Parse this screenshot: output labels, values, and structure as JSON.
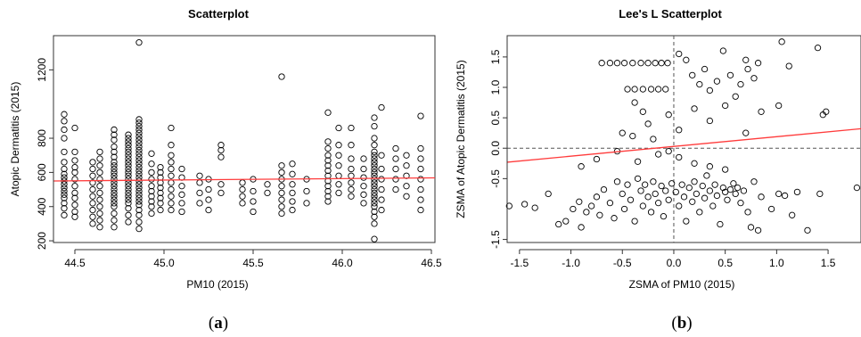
{
  "captions": {
    "a": "a",
    "b": "b"
  },
  "chart_data": [
    {
      "type": "scatter",
      "title": "Scatterplot",
      "xlabel": "PM10 (2015)",
      "ylabel": "Atopic Dermatitis (2015)",
      "xlim": [
        44.38,
        46.52
      ],
      "ylim": [
        190,
        1400
      ],
      "xticks": [
        44.5,
        45.0,
        45.5,
        46.0,
        46.5
      ],
      "xtick_labels": [
        "44.5",
        "45.0",
        "45.5",
        "46.0",
        "46.5"
      ],
      "yticks": [
        200,
        400,
        600,
        800,
        1200
      ],
      "ytick_labels": [
        "200",
        "400",
        "600",
        "800",
        "1200"
      ],
      "regression_line": {
        "color": "#ff3b3b",
        "y_at_xmin": 550,
        "y_at_xmax": 568
      },
      "marker_color": "#000000",
      "columns": [
        {
          "x": 44.44,
          "y": [
            350,
            390,
            420,
            450,
            470,
            490,
            510,
            530,
            550,
            570,
            590,
            620,
            660,
            720,
            800,
            850,
            900,
            940
          ]
        },
        {
          "x": 44.5,
          "y": [
            340,
            370,
            410,
            450,
            480,
            520,
            560,
            600,
            630,
            670,
            720,
            860
          ]
        },
        {
          "x": 44.6,
          "y": [
            300,
            340,
            380,
            420,
            460,
            500,
            540,
            580,
            620,
            660
          ]
        },
        {
          "x": 44.64,
          "y": [
            280,
            320,
            360,
            400,
            440,
            480,
            520,
            560,
            600,
            640,
            680,
            720
          ]
        },
        {
          "x": 44.72,
          "y": [
            280,
            320,
            360,
            400,
            420,
            440,
            460,
            480,
            500,
            520,
            540,
            560,
            580,
            600,
            620,
            640,
            660,
            690,
            720,
            750,
            790,
            820,
            850
          ]
        },
        {
          "x": 44.8,
          "y": [
            310,
            350,
            390,
            420,
            440,
            460,
            480,
            500,
            520,
            540,
            560,
            580,
            600,
            620,
            640,
            660,
            680,
            700,
            720,
            740,
            760,
            780,
            800,
            820
          ]
        },
        {
          "x": 44.86,
          "y": [
            270,
            310,
            350,
            380,
            410,
            430,
            450,
            470,
            490,
            510,
            530,
            550,
            570,
            590,
            610,
            630,
            650,
            670,
            690,
            710,
            730,
            750,
            770,
            790,
            810,
            830,
            850,
            870,
            890,
            910,
            1360
          ]
        },
        {
          "x": 44.93,
          "y": [
            360,
            400,
            430,
            460,
            490,
            520,
            560,
            600,
            650,
            710
          ]
        },
        {
          "x": 44.98,
          "y": [
            380,
            420,
            450,
            480,
            510,
            540,
            570,
            600,
            630
          ]
        },
        {
          "x": 45.04,
          "y": [
            380,
            420,
            460,
            500,
            540,
            580,
            620,
            660,
            700,
            760,
            860
          ]
        },
        {
          "x": 45.1,
          "y": [
            370,
            420,
            470,
            520,
            570,
            620
          ]
        },
        {
          "x": 45.2,
          "y": [
            420,
            480,
            540,
            580
          ]
        },
        {
          "x": 45.25,
          "y": [
            380,
            440,
            500,
            560
          ]
        },
        {
          "x": 45.32,
          "y": [
            480,
            530,
            690,
            730,
            760
          ]
        },
        {
          "x": 45.44,
          "y": [
            420,
            460,
            500,
            540
          ]
        },
        {
          "x": 45.5,
          "y": [
            370,
            430,
            490,
            560
          ]
        },
        {
          "x": 45.58,
          "y": [
            480,
            530
          ]
        },
        {
          "x": 45.66,
          "y": [
            360,
            400,
            440,
            480,
            520,
            560,
            600,
            640,
            1160
          ]
        },
        {
          "x": 45.72,
          "y": [
            380,
            430,
            480,
            530,
            590,
            650
          ]
        },
        {
          "x": 45.8,
          "y": [
            420,
            490,
            560
          ]
        },
        {
          "x": 45.92,
          "y": [
            430,
            460,
            490,
            520,
            550,
            580,
            610,
            640,
            670,
            700,
            740,
            780,
            950
          ]
        },
        {
          "x": 45.98,
          "y": [
            480,
            530,
            580,
            640,
            700,
            760,
            860
          ]
        },
        {
          "x": 46.05,
          "y": [
            460,
            500,
            540,
            580,
            620,
            680,
            760,
            860
          ]
        },
        {
          "x": 46.12,
          "y": [
            420,
            470,
            520,
            570,
            620,
            680
          ]
        },
        {
          "x": 46.18,
          "y": [
            210,
            300,
            340,
            370,
            400,
            420,
            440,
            460,
            480,
            500,
            520,
            540,
            560,
            580,
            600,
            620,
            640,
            660,
            680,
            700,
            720,
            760,
            800,
            870,
            920
          ]
        },
        {
          "x": 46.22,
          "y": [
            380,
            440,
            500,
            560,
            620,
            700,
            980
          ]
        },
        {
          "x": 46.3,
          "y": [
            500,
            560,
            620,
            680,
            740
          ]
        },
        {
          "x": 46.36,
          "y": [
            460,
            520,
            580,
            640,
            700
          ]
        },
        {
          "x": 46.44,
          "y": [
            380,
            440,
            500,
            560,
            620,
            680,
            740,
            930
          ]
        }
      ]
    },
    {
      "type": "scatter",
      "title": "Lee's L Scatterplot",
      "xlabel": "ZSMA of PM10 (2015)",
      "ylabel": "ZSMA of Atopic Dermatitis (2015)",
      "xlim": [
        -1.62,
        1.82
      ],
      "ylim": [
        -1.55,
        1.85
      ],
      "xticks": [
        -1.5,
        -1.0,
        -0.5,
        0.0,
        0.5,
        1.0,
        1.5
      ],
      "xtick_labels": [
        "-1.5",
        "-1.0",
        "-0.5",
        "0.0",
        "0.5",
        "1.0",
        "1.5"
      ],
      "yticks": [
        -1.5,
        -0.5,
        0.0,
        0.5,
        1.0,
        1.5
      ],
      "ytick_labels": [
        "-1.5",
        "-0.5",
        "0.0",
        "0.5",
        "1.0",
        "1.5"
      ],
      "regression_line": {
        "color": "#ff3b3b",
        "y_at_xmin": -0.23,
        "y_at_xmax": 0.32
      },
      "reference_lines": {
        "x": 0,
        "y": 0,
        "style": "dashed"
      },
      "marker_color": "#000000",
      "points": [
        [
          -1.6,
          -0.95
        ],
        [
          -1.45,
          -0.92
        ],
        [
          -1.35,
          -0.98
        ],
        [
          -1.22,
          -0.75
        ],
        [
          -1.12,
          -1.25
        ],
        [
          -1.05,
          -1.2
        ],
        [
          -0.98,
          -1.0
        ],
        [
          -0.92,
          -0.88
        ],
        [
          -0.9,
          -1.3
        ],
        [
          -0.85,
          -1.05
        ],
        [
          -0.8,
          -0.95
        ],
        [
          -0.75,
          -0.8
        ],
        [
          -0.72,
          -1.1
        ],
        [
          -0.68,
          -0.68
        ],
        [
          -0.62,
          -0.9
        ],
        [
          -0.58,
          -1.15
        ],
        [
          -0.55,
          -0.55
        ],
        [
          -0.5,
          -0.75
        ],
        [
          -0.48,
          -1.0
        ],
        [
          -0.45,
          -0.6
        ],
        [
          -0.42,
          -0.85
        ],
        [
          -0.38,
          -1.2
        ],
        [
          -0.35,
          -0.5
        ],
        [
          -0.32,
          -0.7
        ],
        [
          -0.3,
          -0.95
        ],
        [
          -0.28,
          -0.6
        ],
        [
          -0.25,
          -0.8
        ],
        [
          -0.22,
          -1.05
        ],
        [
          -0.2,
          -0.55
        ],
        [
          -0.18,
          -0.75
        ],
        [
          -0.15,
          -0.9
        ],
        [
          -0.12,
          -0.62
        ],
        [
          -0.1,
          -1.12
        ],
        [
          -0.08,
          -0.7
        ],
        [
          -0.05,
          -0.85
        ],
        [
          -0.02,
          -0.58
        ],
        [
          0.02,
          -0.72
        ],
        [
          0.05,
          -0.95
        ],
        [
          0.08,
          -0.6
        ],
        [
          0.1,
          -0.8
        ],
        [
          0.12,
          -1.2
        ],
        [
          0.15,
          -0.65
        ],
        [
          0.18,
          -0.88
        ],
        [
          0.2,
          -0.55
        ],
        [
          0.22,
          -0.75
        ],
        [
          0.25,
          -1.05
        ],
        [
          0.28,
          -0.62
        ],
        [
          0.3,
          -0.82
        ],
        [
          0.32,
          -0.45
        ],
        [
          0.35,
          -0.7
        ],
        [
          0.38,
          -0.95
        ],
        [
          0.4,
          -0.6
        ],
        [
          0.42,
          -0.78
        ],
        [
          0.45,
          -1.25
        ],
        [
          0.48,
          -0.65
        ],
        [
          0.5,
          -0.72
        ],
        [
          0.52,
          -0.85
        ],
        [
          0.55,
          -0.68
        ],
        [
          0.58,
          -0.58
        ],
        [
          0.6,
          -0.75
        ],
        [
          0.62,
          -0.65
        ],
        [
          0.65,
          -0.9
        ],
        [
          0.68,
          -0.7
        ],
        [
          0.72,
          -1.05
        ],
        [
          0.75,
          -1.3
        ],
        [
          0.78,
          -0.55
        ],
        [
          0.82,
          -1.35
        ],
        [
          0.85,
          -0.8
        ],
        [
          0.95,
          -1.0
        ],
        [
          1.02,
          -0.75
        ],
        [
          1.08,
          -0.78
        ],
        [
          1.15,
          -1.1
        ],
        [
          1.2,
          -0.72
        ],
        [
          1.3,
          -1.35
        ],
        [
          1.42,
          -0.75
        ],
        [
          1.78,
          -0.65
        ],
        [
          -0.7,
          1.4
        ],
        [
          -0.62,
          1.4
        ],
        [
          -0.55,
          1.4
        ],
        [
          -0.48,
          1.4
        ],
        [
          -0.4,
          1.4
        ],
        [
          -0.32,
          1.4
        ],
        [
          -0.25,
          1.4
        ],
        [
          -0.18,
          1.4
        ],
        [
          -0.12,
          1.4
        ],
        [
          -0.06,
          1.4
        ],
        [
          -0.45,
          0.97
        ],
        [
          -0.38,
          0.97
        ],
        [
          -0.3,
          0.97
        ],
        [
          -0.22,
          0.97
        ],
        [
          -0.15,
          0.97
        ],
        [
          -0.08,
          0.97
        ],
        [
          -0.38,
          0.75
        ],
        [
          -0.3,
          0.6
        ],
        [
          -0.25,
          0.4
        ],
        [
          -0.4,
          0.2
        ],
        [
          -0.5,
          0.25
        ],
        [
          -0.2,
          0.15
        ],
        [
          -0.05,
          0.55
        ],
        [
          0.05,
          0.3
        ],
        [
          0.05,
          1.55
        ],
        [
          0.12,
          1.45
        ],
        [
          0.18,
          1.2
        ],
        [
          0.25,
          1.05
        ],
        [
          0.3,
          1.3
        ],
        [
          0.35,
          0.95
        ],
        [
          0.42,
          1.1
        ],
        [
          0.48,
          1.6
        ],
        [
          0.55,
          1.2
        ],
        [
          0.6,
          0.85
        ],
        [
          0.65,
          1.05
        ],
        [
          0.7,
          1.45
        ],
        [
          0.72,
          1.3
        ],
        [
          0.78,
          1.15
        ],
        [
          0.82,
          1.4
        ],
        [
          0.2,
          0.65
        ],
        [
          0.35,
          0.45
        ],
        [
          0.5,
          0.7
        ],
        [
          0.7,
          0.25
        ],
        [
          0.85,
          0.6
        ],
        [
          1.05,
          1.75
        ],
        [
          1.12,
          1.35
        ],
        [
          1.02,
          0.7
        ],
        [
          1.4,
          1.65
        ],
        [
          1.45,
          0.55
        ],
        [
          1.48,
          0.6
        ],
        [
          -0.9,
          -0.3
        ],
        [
          -0.75,
          -0.18
        ],
        [
          -0.55,
          -0.05
        ],
        [
          -0.35,
          -0.22
        ],
        [
          -0.15,
          -0.1
        ],
        [
          -0.05,
          -0.05
        ],
        [
          0.05,
          -0.15
        ],
        [
          0.2,
          -0.25
        ],
        [
          0.35,
          -0.3
        ],
        [
          0.5,
          -0.35
        ]
      ]
    }
  ]
}
